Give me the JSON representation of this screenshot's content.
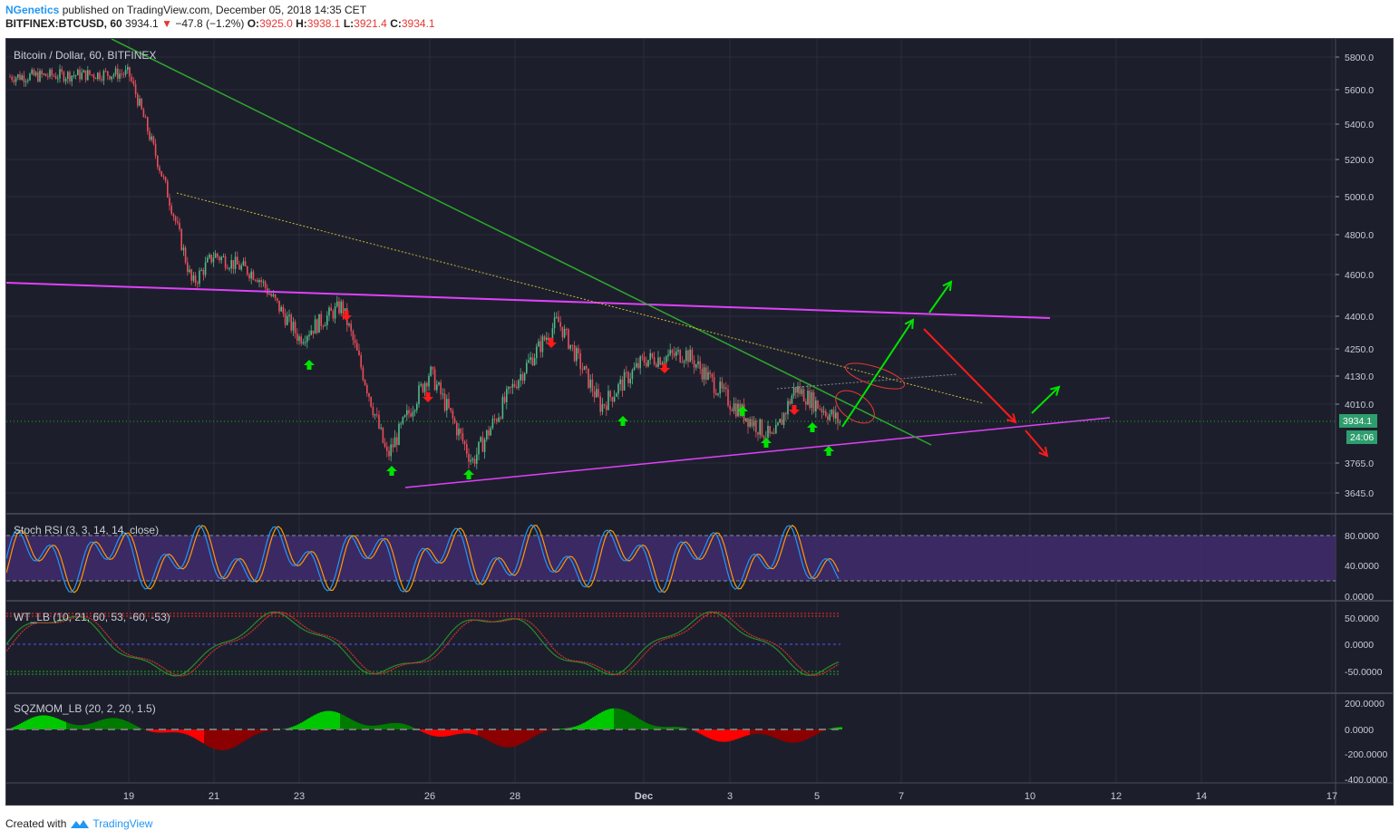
{
  "header": {
    "author": "NGenetics",
    "published": "published on TradingView.com, December 05, 2018 14:35 CET",
    "symbol": "BITFINEX:BTCUSD, 60",
    "last": "3934.1",
    "change": "−47.8 (−1.2%)",
    "o_label": "O:",
    "o_val": "3925.0",
    "h_label": "H:",
    "h_val": "3938.1",
    "l_label": "L:",
    "l_val": "3921.4",
    "c_label": "C:",
    "c_val": "3934.1"
  },
  "footer": {
    "created": "Created with",
    "brand": "TradingView"
  },
  "colors": {
    "background": "#1c1f2b",
    "grid": "#2a2e39",
    "up": "#53b987",
    "down": "#eb4d5c",
    "magenta": "#e040fb",
    "green_line": "#2ea82e",
    "arrow_green": "#00e400",
    "arrow_red": "#ff1a1a",
    "stoch_k": "#2196f3",
    "stoch_d": "#ff9800",
    "stoch_band": "#3f2a6a"
  },
  "chart_data": [
    {
      "type": "candlestick",
      "title": "Bitcoin / Dollar, 60, BITFINEX",
      "x_ticks": [
        "19",
        "21",
        "23",
        "26",
        "28",
        "Dec",
        "3",
        "5",
        "7",
        "10",
        "12",
        "14",
        "17"
      ],
      "y_ticks": [
        "5800.0",
        "5600.0",
        "5400.0",
        "5200.0",
        "5000.0",
        "4800.0",
        "4600.0",
        "4400.0",
        "4250.0",
        "4130.0",
        "4010.0",
        "3765.0",
        "3645.0"
      ],
      "last_price_label": "3934.1",
      "countdown_label": "24:06",
      "approx_price_path": [
        {
          "date": "Nov 17",
          "price": 5680
        },
        {
          "date": "Nov 19",
          "price": 5700
        },
        {
          "date": "Nov 20",
          "price": 4950
        },
        {
          "date": "Nov 20 12h",
          "price": 4550
        },
        {
          "date": "Nov 21",
          "price": 4700
        },
        {
          "date": "Nov 22",
          "price": 4600
        },
        {
          "date": "Nov 23",
          "price": 4300
        },
        {
          "date": "Nov 24",
          "price": 4450
        },
        {
          "date": "Nov 25",
          "price": 3790
        },
        {
          "date": "Nov 26",
          "price": 4150
        },
        {
          "date": "Nov 27",
          "price": 3770
        },
        {
          "date": "Nov 28",
          "price": 4100
        },
        {
          "date": "Nov 29",
          "price": 4380
        },
        {
          "date": "Nov 30",
          "price": 4000
        },
        {
          "date": "Dec 1",
          "price": 4200
        },
        {
          "date": "Dec 2",
          "price": 4230
        },
        {
          "date": "Dec 3",
          "price": 4020
        },
        {
          "date": "Dec 4",
          "price": 3860
        },
        {
          "date": "Dec 4 12h",
          "price": 4080
        },
        {
          "date": "Dec 5",
          "price": 3934
        }
      ]
    },
    {
      "type": "line",
      "title": "Stoch RSI (3, 3, 14, 14, close)",
      "y_ticks": [
        "80.0000",
        "40.0000",
        "0.0000"
      ],
      "bands": [
        20,
        80
      ]
    },
    {
      "type": "line",
      "title": "WT_LB (10, 21, 60, 53, -60, -53)",
      "y_ticks": [
        "50.0000",
        "0.0000",
        "-50.0000"
      ],
      "levels": [
        53,
        60,
        -53,
        -60
      ]
    },
    {
      "type": "bar",
      "title": "SQZMOM_LB (20, 2, 20, 1.5)",
      "y_ticks": [
        "200.0000",
        "0.0000",
        "-200.0000",
        "-400.0000"
      ]
    }
  ]
}
